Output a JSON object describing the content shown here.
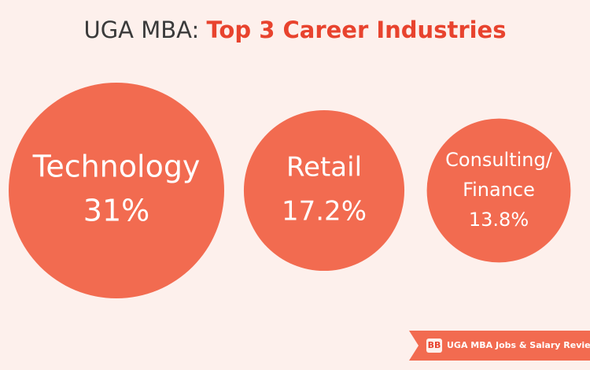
{
  "title": {
    "prefix": "UGA MBA:",
    "highlight": "Top 3 Career Industries"
  },
  "colors": {
    "circle": "#f26b50",
    "highlight": "#e8432e",
    "background": "#fdf0ec"
  },
  "chart_data": {
    "type": "bubble",
    "title": "UGA MBA: Top 3 Career Industries",
    "categories": [
      {
        "label_lines": [
          "Technology"
        ],
        "value": 31,
        "value_label": "31%"
      },
      {
        "label_lines": [
          "Retail"
        ],
        "value": 17.2,
        "value_label": "17.2%"
      },
      {
        "label_lines": [
          "Consulting/",
          "Finance"
        ],
        "value": 13.8,
        "value_label": "13.8%"
      }
    ]
  },
  "banner": {
    "logo": "BB",
    "text": "UGA MBA Jobs & Salary Review"
  }
}
